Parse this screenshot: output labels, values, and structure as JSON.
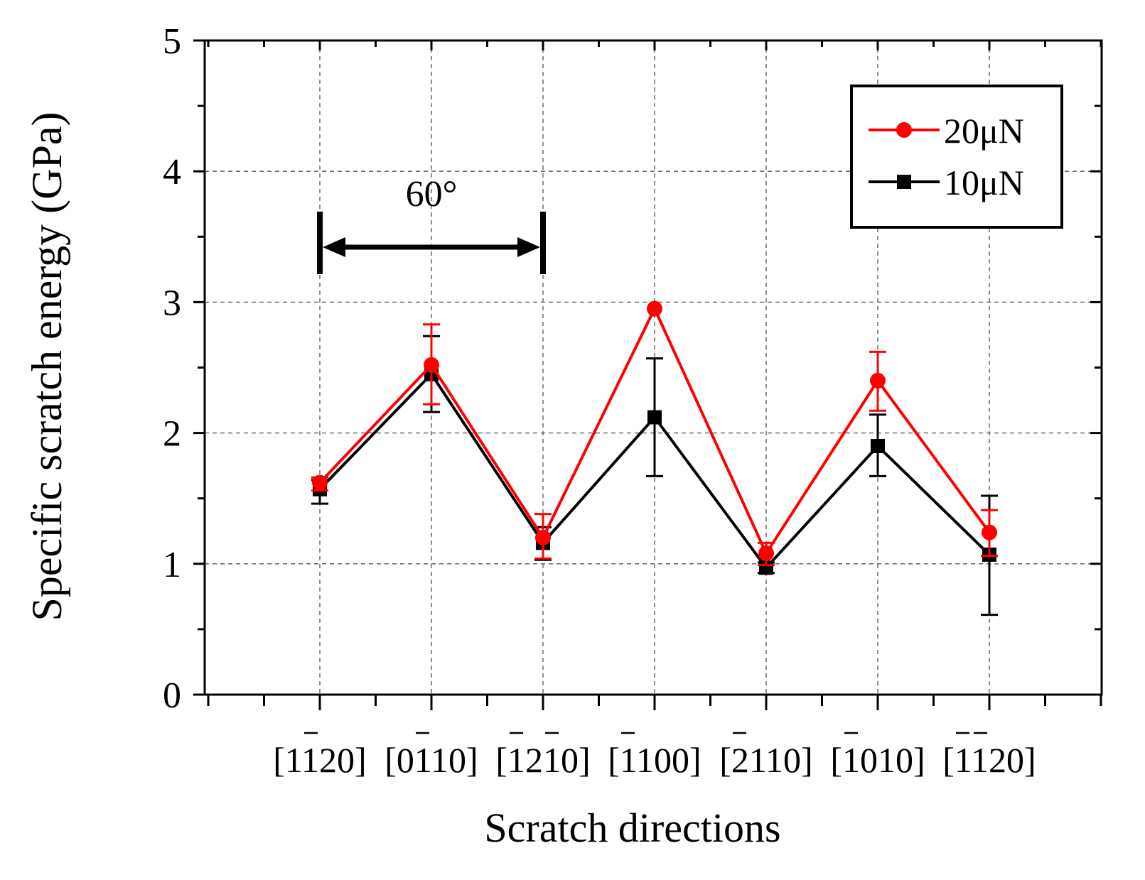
{
  "chart_data": {
    "type": "line",
    "title": "",
    "xlabel": "Scratch directions",
    "ylabel": "Specific scratch energy (GPa)",
    "ylim": [
      0,
      5
    ],
    "yticks": [
      "0",
      "1",
      "2",
      "3",
      "4",
      "5"
    ],
    "grid": true,
    "legend_position": "top-right",
    "categories": [
      "[1120]",
      "[0110]",
      "[1210]",
      "[1100]",
      "[2110]",
      "[1010]",
      "[1120]"
    ],
    "category_overbar_digits": [
      [
        2
      ],
      [
        2
      ],
      [
        1,
        3
      ],
      [
        1
      ],
      [
        1
      ],
      [
        1
      ],
      [
        1,
        2
      ]
    ],
    "series": [
      {
        "name": "20μN",
        "color": "#ff0000",
        "marker": "circle",
        "values": [
          1.62,
          2.52,
          1.2,
          2.95,
          1.08,
          2.4,
          1.24
        ],
        "err_low": [
          1.56,
          2.22,
          1.04,
          2.95,
          0.99,
          2.17,
          1.06
        ],
        "err_high": [
          1.66,
          2.83,
          1.38,
          2.95,
          1.16,
          2.62,
          1.41
        ]
      },
      {
        "name": "10μN",
        "color": "#000000",
        "marker": "square",
        "values": [
          1.57,
          2.45,
          1.16,
          2.12,
          0.97,
          1.9,
          1.07
        ],
        "err_low": [
          1.46,
          2.16,
          1.03,
          1.67,
          0.93,
          1.67,
          0.61
        ],
        "err_high": [
          1.64,
          2.74,
          1.28,
          2.57,
          1.01,
          2.14,
          1.52
        ]
      }
    ],
    "annotations": [
      {
        "text": "60°",
        "from_category": 0,
        "to_category": 2
      }
    ]
  }
}
